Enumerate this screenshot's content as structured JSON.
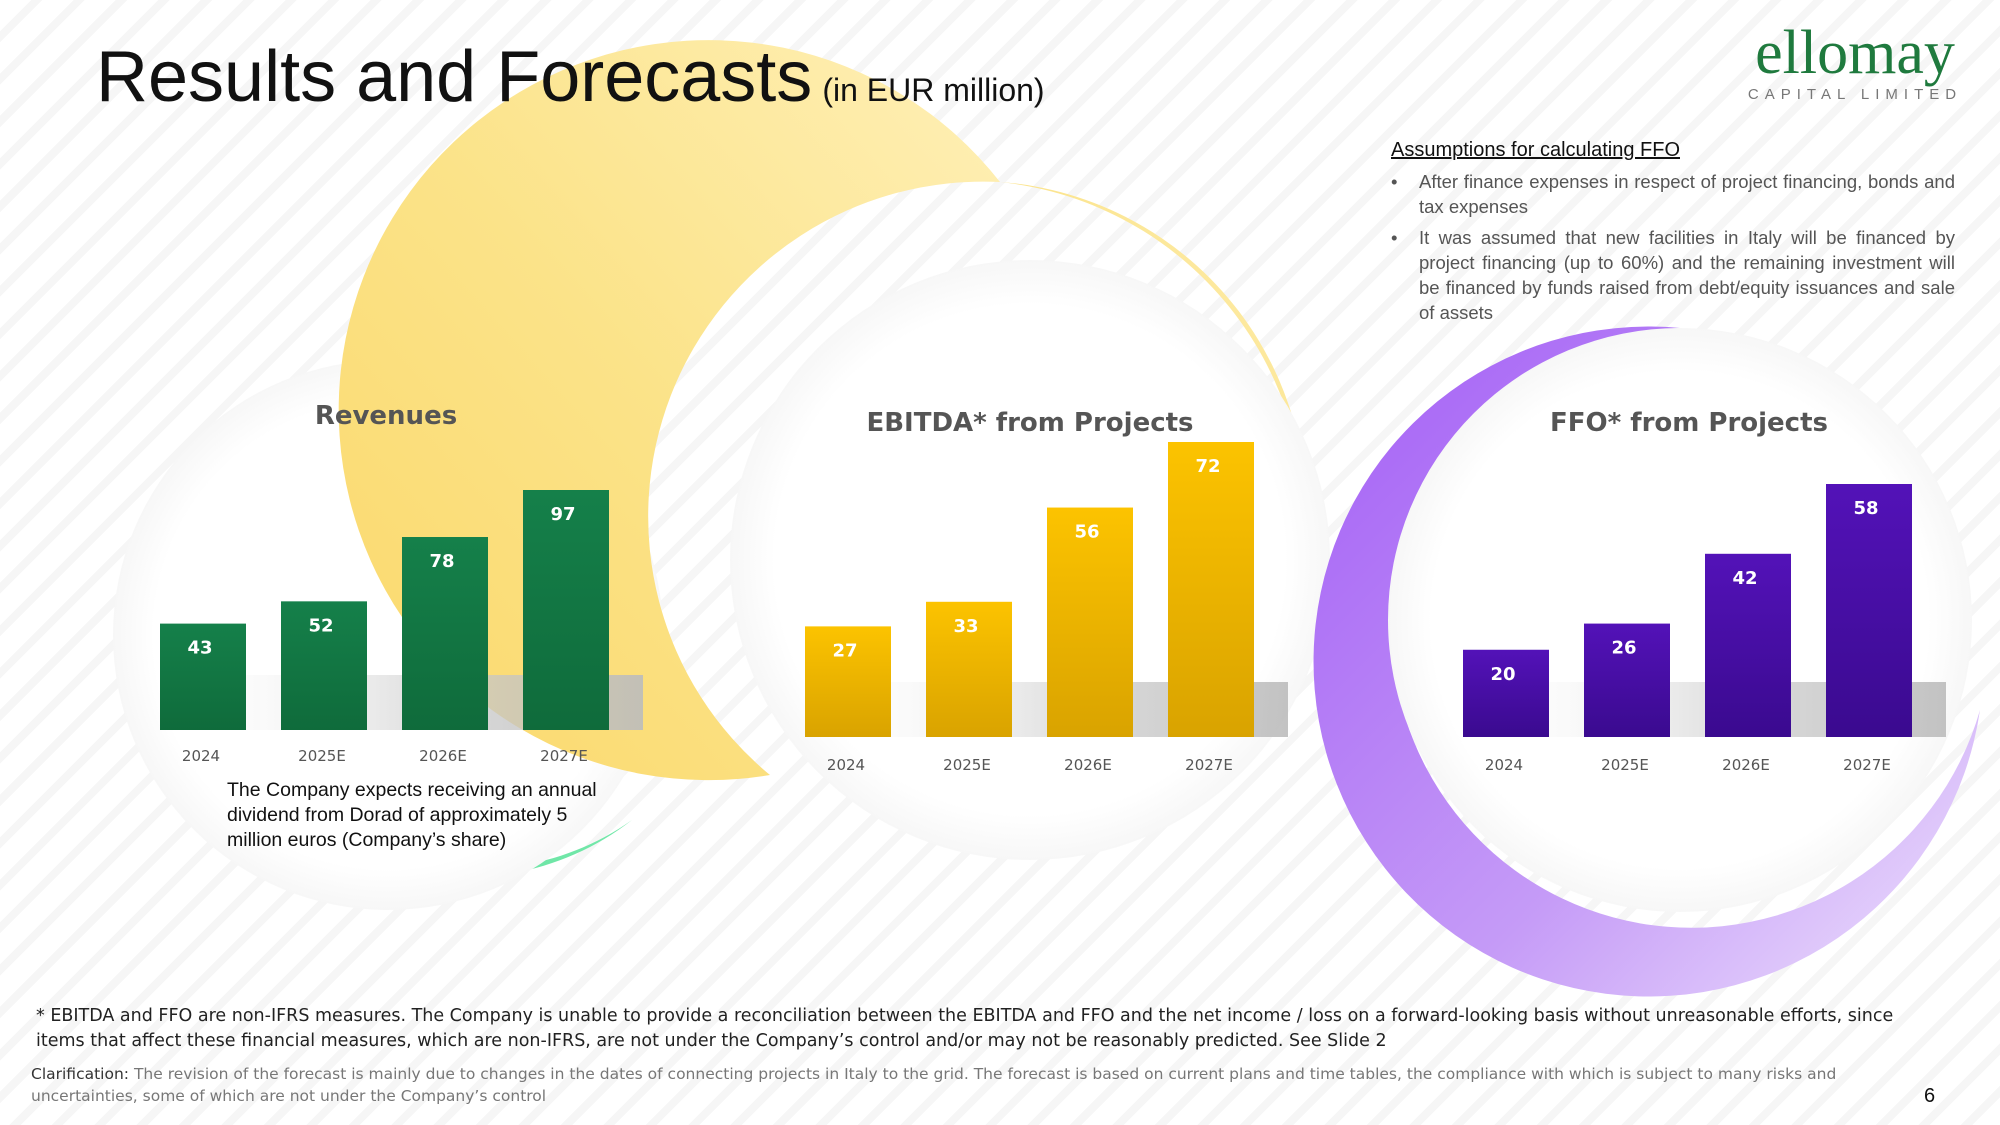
{
  "header": {
    "title": "Results and Forecasts",
    "subtitle": "(in EUR million)"
  },
  "logo": {
    "name": "ellomay",
    "tagline": "CAPITAL LIMITED"
  },
  "assumptions": {
    "heading": "Assumptions for calculating FFO",
    "items": [
      "After finance expenses in respect of project financing, bonds and tax expenses",
      "It was assumed that new facilities in Italy will be financed by project financing (up to 60%) and the remaining investment will be financed by funds raised from debt/equity issuances and sale of assets"
    ]
  },
  "chart_data": [
    {
      "type": "bar",
      "title": "Revenues",
      "categories": [
        "2024",
        "2025E",
        "2026E",
        "2027E"
      ],
      "values": [
        43,
        52,
        78,
        97
      ],
      "ylim": [
        0,
        110
      ],
      "color": "#137a45"
    },
    {
      "type": "bar",
      "title": "EBITDA* from Projects",
      "categories": [
        "2024",
        "2025E",
        "2026E",
        "2027E"
      ],
      "values": [
        27,
        33,
        56,
        72
      ],
      "ylim": [
        0,
        80
      ],
      "color": "#f2b705"
    },
    {
      "type": "bar",
      "title": "FFO* from Projects",
      "categories": [
        "2024",
        "2025E",
        "2026E",
        "2027E"
      ],
      "values": [
        20,
        26,
        42,
        58
      ],
      "ylim": [
        0,
        65
      ],
      "color": "#4a0fa8"
    }
  ],
  "dividend_note": "The Company expects receiving an annual dividend from Dorad of approximately  5 million euros (Company’s share)",
  "footnote": {
    "text": "* EBITDA and FFO are non-IFRS measures. The Company is unable to provide a reconciliation between the EBITDA and FFO and the net income / loss on a forward-looking basis without unreasonable efforts, since items that affect these financial measures, which are non-IFRS, are not under the Company’s control and/or may not be reasonably predicted.",
    "link": "See Slide 2"
  },
  "clarification": {
    "label": "Clarification:",
    "text": "The revision of the forecast is mainly due to changes in the dates of connecting projects in Italy to the grid. The forecast is based on current plans and time tables, the compliance with which is subject to many risks and uncertainties, some of which are not under the Company’s control"
  },
  "page_number": "6"
}
